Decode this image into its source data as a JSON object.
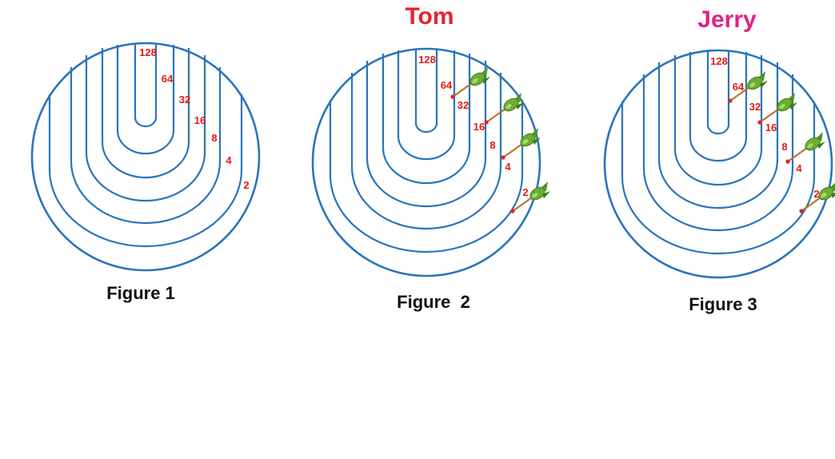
{
  "players": [
    {
      "name": "Tom",
      "color": "#e8232e"
    },
    {
      "name": "Jerry",
      "color": "#e0218a"
    }
  ],
  "ring_scores": [
    "128",
    "64",
    "32",
    "16",
    "8",
    "4",
    "2"
  ],
  "figures": [
    {
      "caption": "Figure 1",
      "darts": []
    },
    {
      "caption": "Figure  2",
      "darts": [
        "64",
        "16",
        "4",
        "2"
      ]
    },
    {
      "caption": "Figure 3",
      "darts": [
        "64",
        "16",
        "4",
        "2"
      ]
    }
  ],
  "colors": {
    "rings": "#2a74bb",
    "scores": "#e51919",
    "dart_body": "#6cae2f",
    "dart_tip": "#d9262b"
  },
  "icons": [
    "dart-icon"
  ]
}
